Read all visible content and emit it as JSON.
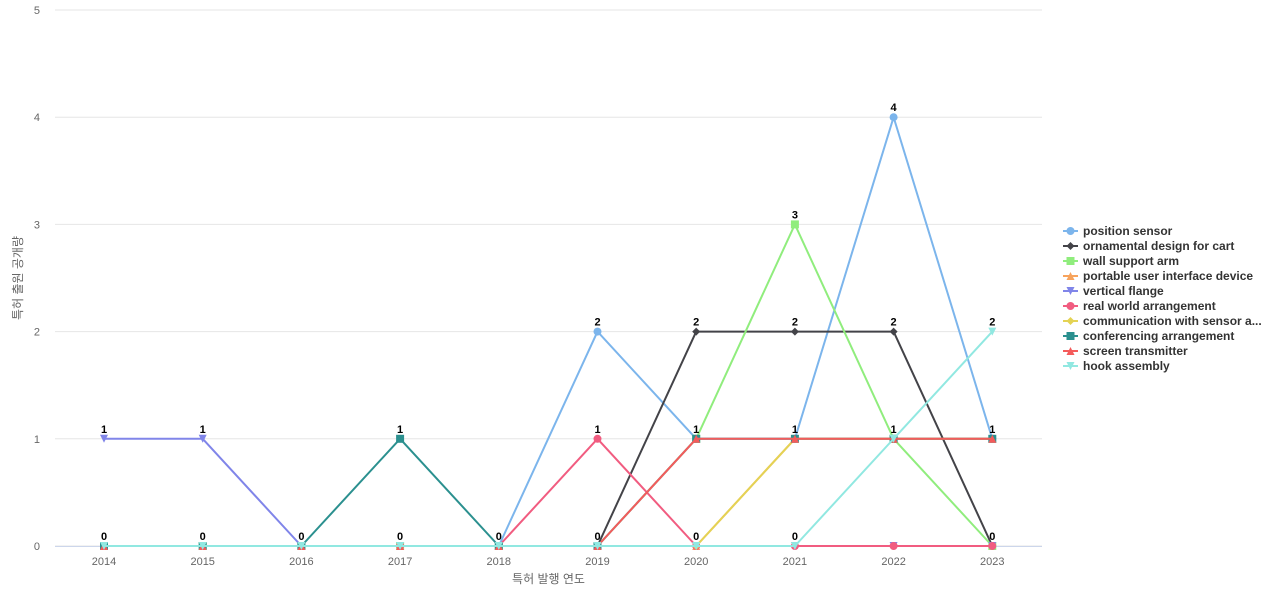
{
  "chart_data": {
    "type": "line",
    "title": "",
    "xlabel": "특허 발행 연도",
    "ylabel": "특허 출원 공개량",
    "x": [
      "2014",
      "2015",
      "2016",
      "2017",
      "2018",
      "2019",
      "2020",
      "2021",
      "2022",
      "2023"
    ],
    "ylim": [
      0,
      5
    ],
    "yticks": [
      0,
      1,
      2,
      3,
      4,
      5
    ],
    "grid": true,
    "legend_position": "right",
    "series": [
      {
        "name": "position sensor",
        "legend_label": "position sensor",
        "color": "#7cb5ec",
        "marker": "circle",
        "values": [
          0,
          0,
          0,
          0,
          0,
          2,
          1,
          1,
          4,
          1
        ]
      },
      {
        "name": "ornamental design for cart",
        "legend_label": "ornamental design for cart",
        "color": "#434348",
        "marker": "diamond",
        "values": [
          0,
          0,
          0,
          0,
          0,
          0,
          2,
          2,
          2,
          0
        ]
      },
      {
        "name": "wall support arm",
        "legend_label": "wall support arm",
        "color": "#90ed7d",
        "marker": "square",
        "values": [
          0,
          0,
          0,
          0,
          0,
          0,
          1,
          3,
          1,
          0
        ]
      },
      {
        "name": "portable user interface device",
        "legend_label": "portable user interface device",
        "color": "#f7a35c",
        "marker": "triangle",
        "values": [
          0,
          0,
          0,
          0,
          0,
          0,
          0,
          1,
          1,
          1
        ]
      },
      {
        "name": "vertical flange",
        "legend_label": "vertical flange",
        "color": "#8085e9",
        "marker": "triangle-down",
        "values": [
          1,
          1,
          0,
          0,
          0,
          0,
          0,
          0,
          0,
          0
        ]
      },
      {
        "name": "real world arrangement",
        "legend_label": "real world arrangement",
        "color": "#f15c80",
        "marker": "circle",
        "values": [
          0,
          0,
          0,
          0,
          0,
          1,
          0,
          0,
          0,
          0
        ]
      },
      {
        "name": "communication with sensor arrangement",
        "legend_label": "communication with sensor a...",
        "color": "#e4d354",
        "marker": "diamond",
        "values": [
          0,
          0,
          0,
          0,
          0,
          0,
          0,
          1,
          1,
          1
        ]
      },
      {
        "name": "conferencing arrangement",
        "legend_label": "conferencing arrangement",
        "color": "#2b908f",
        "marker": "square",
        "values": [
          0,
          0,
          0,
          1,
          0,
          0,
          1,
          1,
          1,
          1
        ]
      },
      {
        "name": "screen transmitter",
        "legend_label": "screen transmitter",
        "color": "#f45b5b",
        "marker": "triangle",
        "values": [
          0,
          0,
          0,
          0,
          0,
          0,
          1,
          1,
          1,
          1
        ]
      },
      {
        "name": "hook assembly",
        "legend_label": "hook assembly",
        "color": "#91e8e1",
        "marker": "triangle-down",
        "values": [
          0,
          0,
          0,
          0,
          0,
          0,
          0,
          0,
          1,
          2
        ]
      }
    ],
    "data_labels": [
      {
        "x": "2014",
        "value": 1,
        "series": "vertical flange"
      },
      {
        "x": "2014",
        "value": 0,
        "series": "hook assembly"
      },
      {
        "x": "2015",
        "value": 1,
        "series": "vertical flange"
      },
      {
        "x": "2015",
        "value": 0,
        "series": "hook assembly"
      },
      {
        "x": "2016",
        "value": 0,
        "series": "hook assembly"
      },
      {
        "x": "2017",
        "value": 1,
        "series": "conferencing arrangement"
      },
      {
        "x": "2017",
        "value": 0,
        "series": "hook assembly"
      },
      {
        "x": "2018",
        "value": 0,
        "series": "hook assembly"
      },
      {
        "x": "2019",
        "value": 2,
        "series": "position sensor"
      },
      {
        "x": "2019",
        "value": 1,
        "series": "real world arrangement"
      },
      {
        "x": "2019",
        "value": 0,
        "series": "hook assembly"
      },
      {
        "x": "2020",
        "value": 2,
        "series": "ornamental design for cart"
      },
      {
        "x": "2020",
        "value": 1,
        "series": "screen transmitter"
      },
      {
        "x": "2020",
        "value": 0,
        "series": "hook assembly"
      },
      {
        "x": "2021",
        "value": 3,
        "series": "wall support arm"
      },
      {
        "x": "2021",
        "value": 2,
        "series": "ornamental design for cart"
      },
      {
        "x": "2021",
        "value": 1,
        "series": "screen transmitter"
      },
      {
        "x": "2021",
        "value": 0,
        "series": "hook assembly"
      },
      {
        "x": "2022",
        "value": 4,
        "series": "position sensor"
      },
      {
        "x": "2022",
        "value": 2,
        "series": "ornamental design for cart"
      },
      {
        "x": "2022",
        "value": 1,
        "series": "screen transmitter"
      },
      {
        "x": "2023",
        "value": 2,
        "series": "hook assembly"
      },
      {
        "x": "2023",
        "value": 1,
        "series": "screen transmitter"
      },
      {
        "x": "2023",
        "value": 0,
        "series": "ornamental design for cart"
      }
    ]
  }
}
